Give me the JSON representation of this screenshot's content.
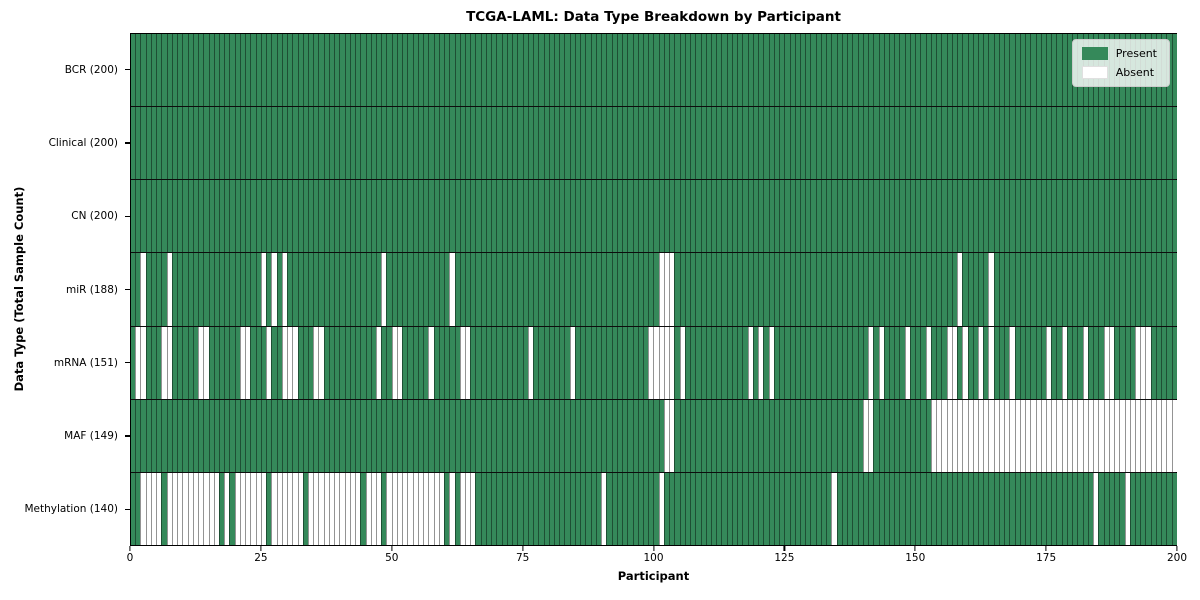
{
  "chart_data": {
    "type": "heatmap",
    "title": "TCGA-LAML: Data Type Breakdown by Participant",
    "xlabel": "Participant",
    "ylabel": "Data Type (Total Sample Count)",
    "x_range": [
      0,
      200
    ],
    "xticks": [
      0,
      25,
      50,
      75,
      100,
      125,
      150,
      175,
      200
    ],
    "n_participants": 200,
    "grid": false,
    "legend_position": "upper right",
    "legend": {
      "entries": [
        {
          "label": "Present",
          "color": "#35895a"
        },
        {
          "label": "Absent",
          "color": "#ffffff"
        }
      ]
    },
    "colors": {
      "present": "#35895a",
      "absent": "#ffffff",
      "cell_border": "#000000",
      "row_separator": "#0d0d0d"
    },
    "rows": [
      {
        "label": "BCR (200)",
        "name": "bcr",
        "total": 200,
        "absent": []
      },
      {
        "label": "Clinical (200)",
        "name": "clinical",
        "total": 200,
        "absent": []
      },
      {
        "label": "CN (200)",
        "name": "cn",
        "total": 200,
        "absent": []
      },
      {
        "label": "miR (188)",
        "name": "mir",
        "total": 188,
        "absent": [
          2,
          7,
          25,
          27,
          29,
          48,
          61,
          101,
          102,
          103,
          158,
          164
        ]
      },
      {
        "label": "mRNA (151)",
        "name": "mrna",
        "total": 151,
        "absent": [
          1,
          2,
          6,
          7,
          13,
          14,
          21,
          22,
          26,
          29,
          30,
          31,
          35,
          36,
          47,
          50,
          51,
          57,
          63,
          64,
          76,
          84,
          99,
          100,
          101,
          102,
          103,
          105,
          118,
          120,
          122,
          141,
          143,
          148,
          152,
          156,
          157,
          159,
          162,
          164,
          168,
          175,
          178,
          182,
          186,
          187,
          192,
          193,
          194
        ]
      },
      {
        "label": "MAF (149)",
        "name": "maf",
        "total": 149,
        "absent": [
          102,
          103,
          140,
          141,
          153,
          154,
          155,
          156,
          157,
          158,
          159,
          160,
          161,
          162,
          163,
          164,
          165,
          166,
          167,
          168,
          169,
          170,
          171,
          172,
          173,
          174,
          175,
          176,
          177,
          178,
          179,
          180,
          181,
          182,
          183,
          184,
          185,
          186,
          187,
          188,
          189,
          190,
          191,
          192,
          193,
          194,
          195,
          196,
          197,
          198,
          199
        ]
      },
      {
        "label": "Methylation (140)",
        "name": "methylation",
        "total": 140,
        "absent": [
          2,
          3,
          4,
          5,
          7,
          8,
          9,
          10,
          11,
          12,
          13,
          14,
          15,
          16,
          18,
          20,
          21,
          22,
          23,
          24,
          25,
          27,
          28,
          29,
          30,
          31,
          32,
          34,
          35,
          36,
          37,
          38,
          39,
          40,
          41,
          42,
          43,
          45,
          46,
          47,
          49,
          50,
          51,
          52,
          53,
          54,
          55,
          56,
          57,
          58,
          59,
          61,
          63,
          64,
          65,
          90,
          101,
          134,
          184,
          190
        ]
      }
    ]
  }
}
